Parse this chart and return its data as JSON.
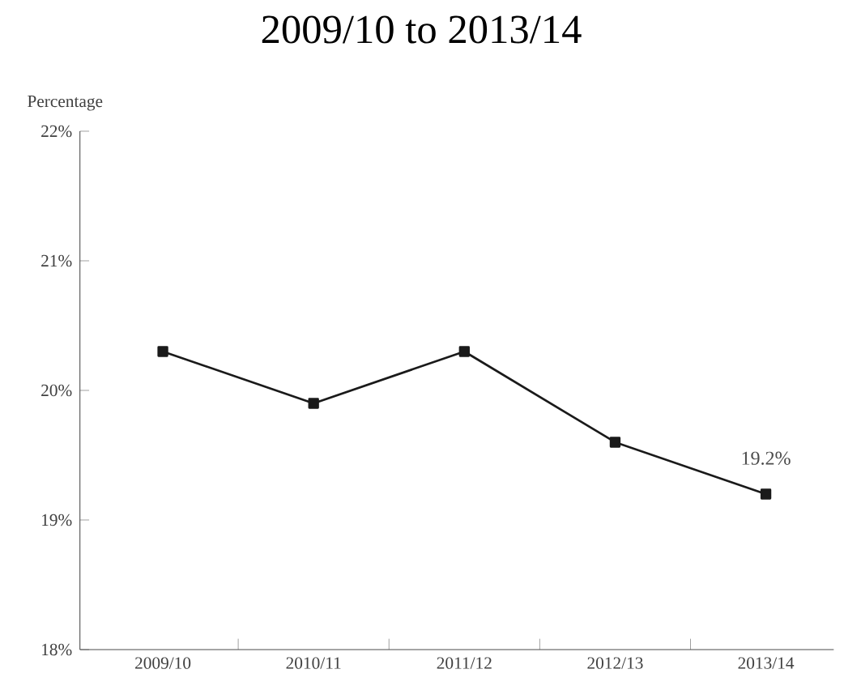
{
  "chart_data": {
    "type": "line",
    "title": "2009/10 to 2013/14",
    "ylabel": "Percentage",
    "categories": [
      "2009/10",
      "2010/11",
      "2011/12",
      "2012/13",
      "2013/14"
    ],
    "values": [
      20.3,
      19.9,
      20.3,
      19.6,
      19.2
    ],
    "value_labels": [
      null,
      null,
      null,
      null,
      "19.2%"
    ],
    "color": "#1a1a1a",
    "marker": "square",
    "line_style": "solid",
    "ylim": [
      18,
      22
    ],
    "yticks": [
      {
        "value": 18,
        "label": "18%"
      },
      {
        "value": 19,
        "label": "19%"
      },
      {
        "value": 20,
        "label": "20%"
      },
      {
        "value": 21,
        "label": "21%"
      },
      {
        "value": 22,
        "label": "22%"
      }
    ],
    "grid": false
  }
}
